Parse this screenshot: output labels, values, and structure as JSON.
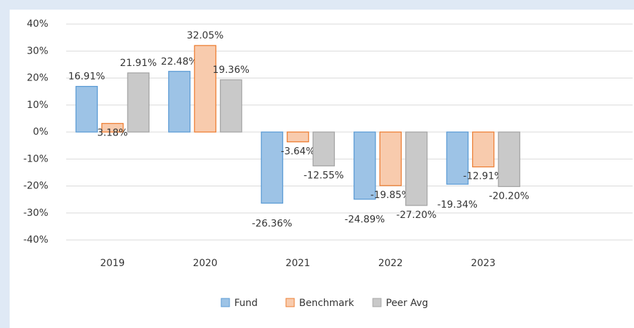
{
  "chart_data": {
    "type": "bar",
    "categories": [
      "2019",
      "2020",
      "2021",
      "2022",
      "2023"
    ],
    "series": [
      {
        "name": "Fund",
        "color": "#9dc3e6",
        "stroke": "#5b9bd5",
        "values": [
          16.91,
          22.48,
          -26.36,
          -24.89,
          -19.34
        ],
        "value_labels": [
          "16.91%",
          "22.48%",
          "-26.36%",
          "-24.89%",
          "-19.34%"
        ]
      },
      {
        "name": "Benchmark",
        "color": "#f8cbad",
        "stroke": "#ed7d31",
        "values": [
          3.18,
          32.05,
          -3.64,
          -19.85,
          -12.91
        ],
        "value_labels": [
          "3.18%",
          "32.05%",
          "-3.64%",
          "-19.85%",
          "-12.91%"
        ]
      },
      {
        "name": "Peer Avg",
        "color": "#c9c9c9",
        "stroke": "#a5a5a5",
        "values": [
          21.91,
          19.36,
          -12.55,
          -27.2,
          -20.2
        ],
        "value_labels": [
          "21.91%",
          "19.36%",
          "-12.55%",
          "-27.20%",
          "-20.20%"
        ]
      }
    ],
    "ylim": [
      -40,
      40
    ],
    "yticks": [
      {
        "value": 40,
        "label": "40%"
      },
      {
        "value": 30,
        "label": "30%"
      },
      {
        "value": 20,
        "label": "20%"
      },
      {
        "value": 10,
        "label": "10%"
      },
      {
        "value": 0,
        "label": "0%"
      },
      {
        "value": -10,
        "label": "-10%"
      },
      {
        "value": -20,
        "label": "-20%"
      },
      {
        "value": -30,
        "label": "-30%"
      },
      {
        "value": -40,
        "label": "-40%"
      }
    ],
    "grid": true,
    "legend": "bottom"
  }
}
